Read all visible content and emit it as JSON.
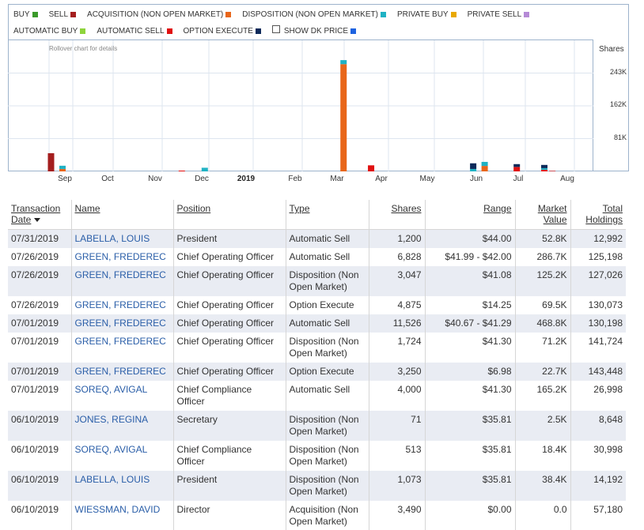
{
  "legend": [
    {
      "label": "BUY",
      "color": "#3a9a2a"
    },
    {
      "label": "SELL",
      "color": "#a41e1e"
    },
    {
      "label": "ACQUISITION (NON OPEN MARKET)",
      "color": "#e8661a"
    },
    {
      "label": "DISPOSITION (NON OPEN MARKET)",
      "color": "#1fb2c4"
    },
    {
      "label": "PRIVATE BUY",
      "color": "#e8a800"
    },
    {
      "label": "PRIVATE SELL",
      "color": "#b58ad6"
    },
    {
      "label": "AUTOMATIC BUY",
      "color": "#8ed43c"
    },
    {
      "label": "AUTOMATIC SELL",
      "color": "#e01010"
    },
    {
      "label": "OPTION EXECUTE",
      "color": "#0d2a5a"
    }
  ],
  "show_dk_price": {
    "label": "SHOW DK PRICE",
    "color": "#1e63e0",
    "checked": false
  },
  "chart": {
    "rollover_text": "Rollover chart for details",
    "shares_label": "Shares"
  },
  "chart_data": {
    "type": "bar",
    "stacked": true,
    "y_unit": "Shares",
    "y_ticks": [
      "243K",
      "162K",
      "81K"
    ],
    "y_tick_values": [
      243000,
      162000,
      81000
    ],
    "ylim": [
      0,
      324000
    ],
    "x_ticks": [
      "Sep",
      "Oct",
      "Nov",
      "Dec",
      "2019",
      "Feb",
      "Mar",
      "Apr",
      "May",
      "Jun",
      "Jul",
      "Aug"
    ],
    "x_tick_bold": [
      false,
      false,
      false,
      false,
      true,
      false,
      false,
      false,
      false,
      false,
      false,
      false
    ],
    "series_colors": {
      "sell": "#a41e1e",
      "acquisition": "#e8661a",
      "disposition": "#1fb2c4",
      "auto_sell": "#e01010",
      "option_execute": "#0d2a5a"
    },
    "bars": [
      {
        "x": 0.5,
        "segments": [
          {
            "s": "sell",
            "v": 45000
          }
        ]
      },
      {
        "x": 1.0,
        "segments": [
          {
            "s": "acquisition",
            "v": 6000
          },
          {
            "s": "disposition",
            "v": 8000
          }
        ]
      },
      {
        "x": 6.2,
        "segments": [
          {
            "s": "auto_sell",
            "v": 2000
          }
        ]
      },
      {
        "x": 7.2,
        "segments": [
          {
            "s": "disposition",
            "v": 9000
          }
        ]
      },
      {
        "x": 13.25,
        "segments": [
          {
            "s": "acquisition",
            "v": 265000
          },
          {
            "s": "disposition",
            "v": 10000
          }
        ]
      },
      {
        "x": 14.45,
        "segments": [
          {
            "s": "auto_sell",
            "v": 15000
          }
        ]
      },
      {
        "x": 18.9,
        "segments": [
          {
            "s": "disposition",
            "v": 6000
          },
          {
            "s": "option_execute",
            "v": 14000
          }
        ]
      },
      {
        "x": 19.4,
        "segments": [
          {
            "s": "acquisition",
            "v": 13500
          },
          {
            "s": "disposition",
            "v": 10000
          }
        ]
      },
      {
        "x": 20.8,
        "segments": [
          {
            "s": "auto_sell",
            "v": 11000
          },
          {
            "s": "option_execute",
            "v": 7000
          }
        ]
      },
      {
        "x": 22.0,
        "segments": [
          {
            "s": "auto_sell",
            "v": 4000
          },
          {
            "s": "disposition",
            "v": 4000
          },
          {
            "s": "option_execute",
            "v": 8000
          }
        ]
      },
      {
        "x": 22.35,
        "segments": [
          {
            "s": "auto_sell",
            "v": 1200
          }
        ]
      }
    ]
  },
  "table": {
    "headers": {
      "date": "Transaction Date",
      "name": "Name",
      "position": "Position",
      "type": "Type",
      "shares": "Shares",
      "range": "Range",
      "market_value": "Market Value",
      "total_holdings": "Total Holdings"
    },
    "rows": [
      {
        "date": "07/31/2019",
        "name": "LABELLA, LOUIS",
        "position": "President",
        "type": "Automatic Sell",
        "shares": "1,200",
        "range": "$44.00",
        "market_value": "52.8K",
        "total_holdings": "12,992"
      },
      {
        "date": "07/26/2019",
        "name": "GREEN, FREDEREC",
        "position": "Chief Operating Officer",
        "type": "Automatic Sell",
        "shares": "6,828",
        "range": "$41.99 - $42.00",
        "market_value": "286.7K",
        "total_holdings": "125,198"
      },
      {
        "date": "07/26/2019",
        "name": "GREEN, FREDEREC",
        "position": "Chief Operating Officer",
        "type": "Disposition (Non Open Market)",
        "shares": "3,047",
        "range": "$41.08",
        "market_value": "125.2K",
        "total_holdings": "127,026"
      },
      {
        "date": "07/26/2019",
        "name": "GREEN, FREDEREC",
        "position": "Chief Operating Officer",
        "type": "Option Execute",
        "shares": "4,875",
        "range": "$14.25",
        "market_value": "69.5K",
        "total_holdings": "130,073"
      },
      {
        "date": "07/01/2019",
        "name": "GREEN, FREDEREC",
        "position": "Chief Operating Officer",
        "type": "Automatic Sell",
        "shares": "11,526",
        "range": "$40.67 - $41.29",
        "market_value": "468.8K",
        "total_holdings": "130,198"
      },
      {
        "date": "07/01/2019",
        "name": "GREEN, FREDEREC",
        "position": "Chief Operating Officer",
        "type": "Disposition (Non Open Market)",
        "shares": "1,724",
        "range": "$41.30",
        "market_value": "71.2K",
        "total_holdings": "141,724"
      },
      {
        "date": "07/01/2019",
        "name": "GREEN, FREDEREC",
        "position": "Chief Operating Officer",
        "type": "Option Execute",
        "shares": "3,250",
        "range": "$6.98",
        "market_value": "22.7K",
        "total_holdings": "143,448"
      },
      {
        "date": "07/01/2019",
        "name": "SOREQ, AVIGAL",
        "position": "Chief Compliance Officer",
        "type": "Automatic Sell",
        "shares": "4,000",
        "range": "$41.30",
        "market_value": "165.2K",
        "total_holdings": "26,998"
      },
      {
        "date": "06/10/2019",
        "name": "JONES, REGINA",
        "position": "Secretary",
        "type": "Disposition (Non Open Market)",
        "shares": "71",
        "range": "$35.81",
        "market_value": "2.5K",
        "total_holdings": "8,648"
      },
      {
        "date": "06/10/2019",
        "name": "SOREQ, AVIGAL",
        "position": "Chief Compliance Officer",
        "type": "Disposition (Non Open Market)",
        "shares": "513",
        "range": "$35.81",
        "market_value": "18.4K",
        "total_holdings": "30,998"
      },
      {
        "date": "06/10/2019",
        "name": "LABELLA, LOUIS",
        "position": "President",
        "type": "Disposition (Non Open Market)",
        "shares": "1,073",
        "range": "$35.81",
        "market_value": "38.4K",
        "total_holdings": "14,192"
      },
      {
        "date": "06/10/2019",
        "name": "WIESSMAN, DAVID",
        "position": "Director",
        "type": "Acquisition (Non Open Market)",
        "shares": "3,490",
        "range": "$0.00",
        "market_value": "0.0",
        "total_holdings": "57,180"
      }
    ]
  }
}
